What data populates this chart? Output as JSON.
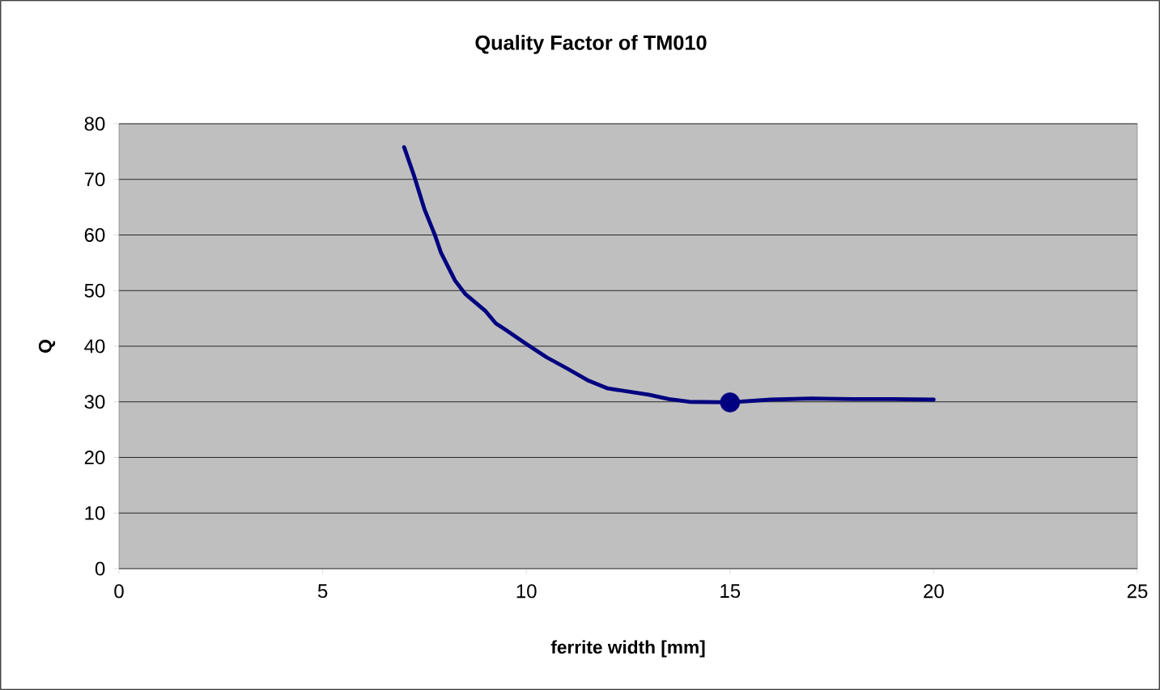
{
  "chart_data": {
    "type": "line",
    "title": "Quality Factor of TM010",
    "xlabel": "ferrite width [mm]",
    "ylabel": "Q",
    "series": [
      {
        "color": "#000080",
        "marker": "none",
        "x": [
          7,
          7.25,
          7.5,
          7.75,
          7.9,
          8.25,
          8.5,
          9,
          9.25,
          9.5,
          10,
          10.5,
          11,
          11.5,
          12,
          13,
          13.5,
          14,
          15,
          16,
          17,
          18,
          19,
          20
        ],
        "values": [
          75.8,
          70.5,
          64.6,
          60.1,
          56.9,
          51.8,
          49.4,
          46.3,
          44.1,
          42.9,
          40.4,
          38.0,
          36.0,
          33.9,
          32.4,
          31.3,
          30.5,
          30.0,
          29.9,
          30.4,
          30.6,
          30.5,
          30.5,
          30.4
        ]
      },
      {
        "type": "scatter",
        "color": "#000080",
        "marker": "circle",
        "x": [
          15
        ],
        "values": [
          29.9
        ]
      }
    ],
    "xlim": [
      0,
      25
    ],
    "ylim": [
      0,
      80
    ],
    "xticks": [
      0,
      5,
      10,
      15,
      20,
      25
    ],
    "yticks": [
      0,
      10,
      20,
      30,
      40,
      50,
      60,
      70,
      80
    ],
    "grid": "y"
  }
}
